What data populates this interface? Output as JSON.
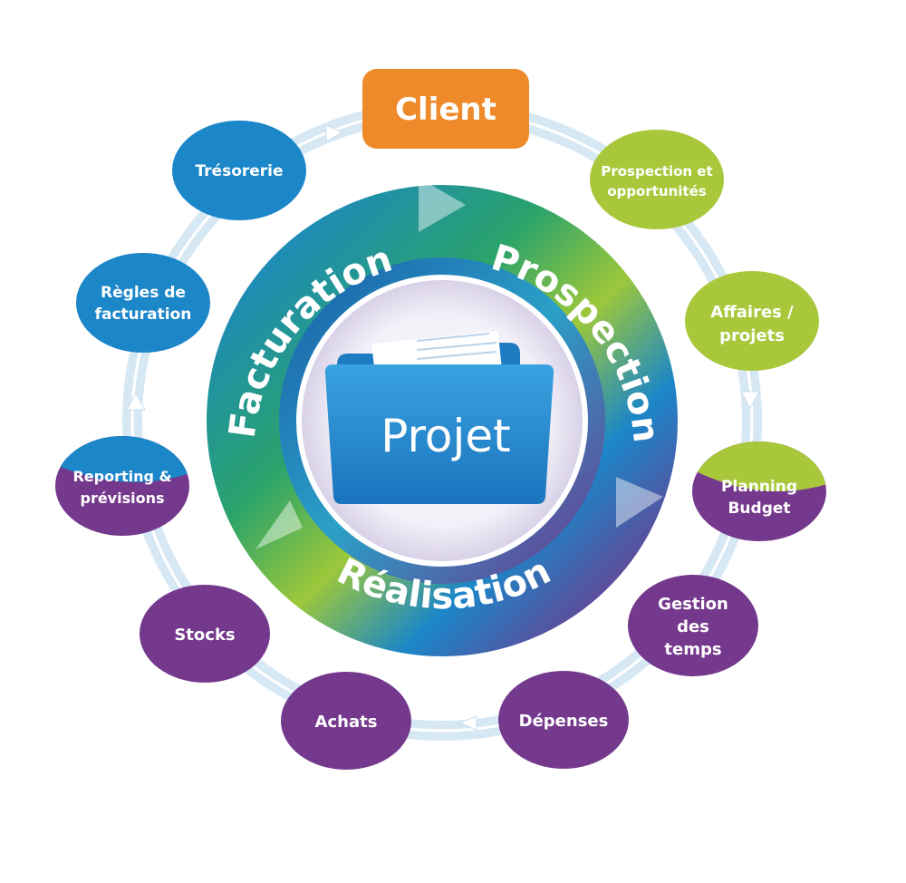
{
  "diagram": {
    "center_label": "Projet",
    "top_node": "Client",
    "ring_labels": {
      "prospection": "Prospection",
      "realisation": "Réalisation",
      "facturation": "Facturation"
    },
    "nodes": {
      "prospection_opportunites": [
        "Prospection et",
        "opportunités"
      ],
      "affaires_projets": [
        "Affaires /",
        "projets"
      ],
      "planning_budget": [
        "Planning",
        "Budget"
      ],
      "gestion_temps": [
        "Gestion",
        "des",
        "temps"
      ],
      "depenses": [
        "Dépenses"
      ],
      "achats": [
        "Achats"
      ],
      "stocks": [
        "Stocks"
      ],
      "reporting_previsions": [
        "Reporting &",
        "prévisions"
      ],
      "regles_facturation": [
        "Règles de",
        "facturation"
      ],
      "tresorerie": [
        "Trésorerie"
      ]
    },
    "colors": {
      "client_orange": "#ef8a2a",
      "prospection_green": "#a8c73a",
      "realisation_purple": "#74398c",
      "facturation_blue": "#1b86c8",
      "track_light_blue": "#d7e8f5",
      "folder_blue": "#2a8fd4"
    }
  }
}
